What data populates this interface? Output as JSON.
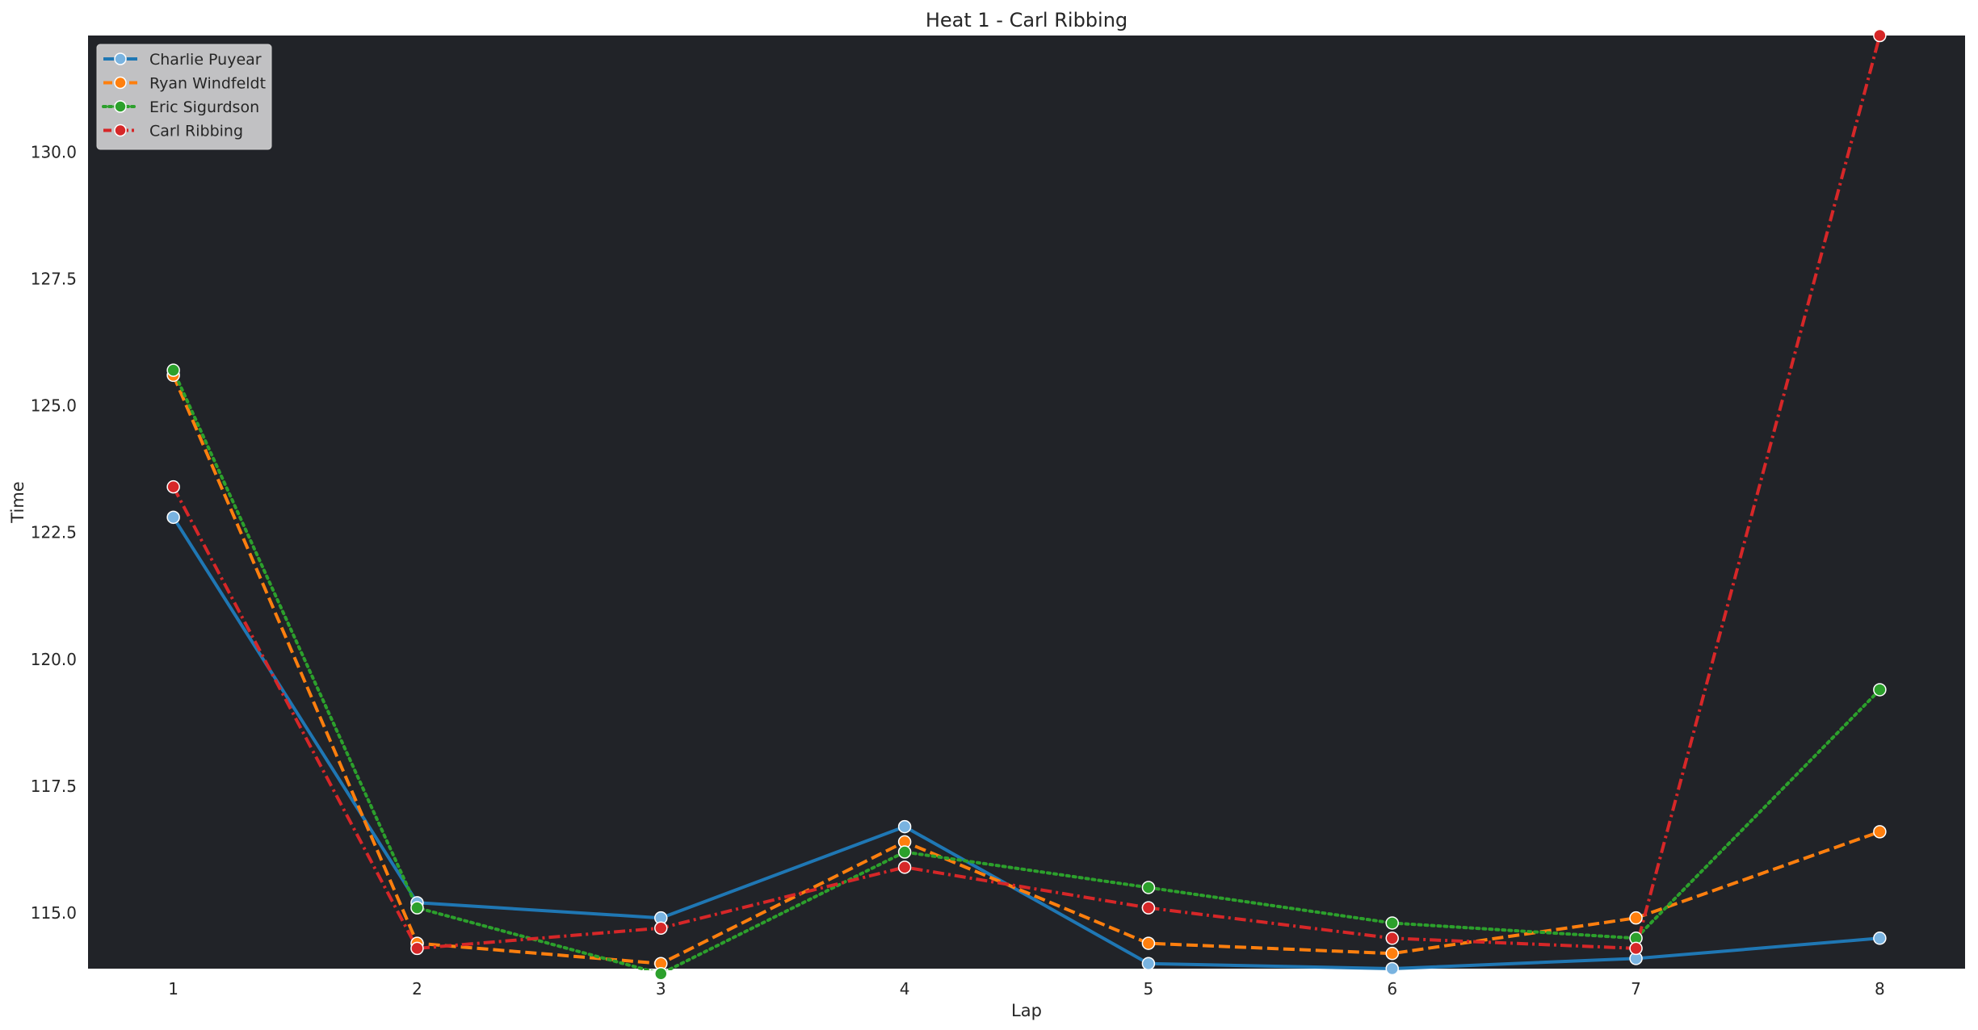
{
  "chart_data": {
    "type": "line",
    "title": "Heat 1 - Carl Ribbing",
    "xlabel": "Lap",
    "ylabel": "Time",
    "x": [
      1,
      2,
      3,
      4,
      5,
      6,
      7,
      8
    ],
    "x_tick_labels": [
      "1",
      "2",
      "3",
      "4",
      "5",
      "6",
      "7",
      "8"
    ],
    "y_ticks": [
      115.0,
      117.5,
      120.0,
      122.5,
      125.0,
      127.5,
      130.0
    ],
    "y_tick_labels": [
      "115.0",
      "117.5",
      "120.0",
      "122.5",
      "125.0",
      "127.5",
      "130.0"
    ],
    "xlim": [
      0.65,
      8.35
    ],
    "ylim": [
      113.9,
      132.3
    ],
    "grid": false,
    "plot_background": "#212328",
    "legend_position": "upper-left",
    "series": [
      {
        "name": "Charlie Puyear",
        "color": "#1f77b4",
        "marker_fill": "#79b3e0",
        "line_style": "solid",
        "values": [
          122.8,
          115.2,
          114.9,
          116.7,
          114.0,
          113.9,
          114.1,
          114.5
        ]
      },
      {
        "name": "Ryan Windfeldt",
        "color": "#ff7f0e",
        "marker_fill": "#ff7f0e",
        "line_style": "dashed",
        "values": [
          125.6,
          114.4,
          114.0,
          116.4,
          114.4,
          114.2,
          114.9,
          116.6
        ]
      },
      {
        "name": "Eric Sigurdson",
        "color": "#2ca02c",
        "marker_fill": "#2ca02c",
        "line_style": "dotted",
        "values": [
          125.7,
          115.1,
          113.8,
          116.2,
          115.5,
          114.8,
          114.5,
          119.4
        ]
      },
      {
        "name": "Carl Ribbing",
        "color": "#d62728",
        "marker_fill": "#d62728",
        "line_style": "dashdot",
        "values": [
          123.4,
          114.3,
          114.7,
          115.9,
          115.1,
          114.5,
          114.3,
          132.3
        ]
      }
    ]
  }
}
